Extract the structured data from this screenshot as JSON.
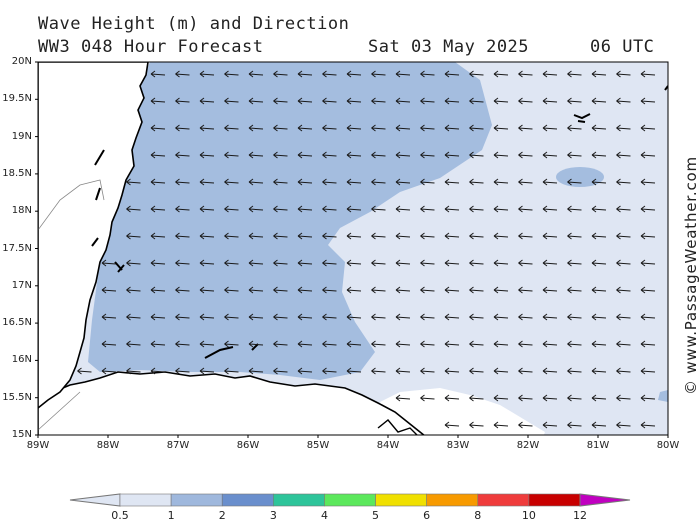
{
  "title": {
    "line1": "Wave Height (m) and Direction",
    "line2": "WW3 048 Hour Forecast",
    "date": "Sat 03 May 2025",
    "time": "06 UTC"
  },
  "credit": "© www.PassageWeather.com",
  "axes": {
    "lat_labels": [
      "20N",
      "19.5N",
      "19N",
      "18.5N",
      "18N",
      "17.5N",
      "17N",
      "16.5N",
      "16N",
      "15.5N",
      "15N"
    ],
    "lon_labels": [
      "89W",
      "88W",
      "87W",
      "86W",
      "85W",
      "84W",
      "83W",
      "82W",
      "81W",
      "80W"
    ],
    "lat_range": [
      15,
      20
    ],
    "lon_range": [
      -89,
      -80
    ]
  },
  "colorbar": {
    "labels": [
      "0.5",
      "1",
      "2",
      "3",
      "4",
      "5",
      "6",
      "8",
      "10",
      "12"
    ],
    "colors": [
      "#dfe6f3",
      "#9fb8dd",
      "#6a8fcd",
      "#2ec49a",
      "#5ce85c",
      "#f0e000",
      "#f79a00",
      "#ef3c3c",
      "#c80000",
      "#c000c0"
    ]
  },
  "map": {
    "wave_low_color": "#dfe6f3",
    "wave_mid_color": "#a4bddf",
    "land_color": "#ffffff",
    "arrow_direction": "west",
    "arrow_color": "#1a1a1a"
  }
}
